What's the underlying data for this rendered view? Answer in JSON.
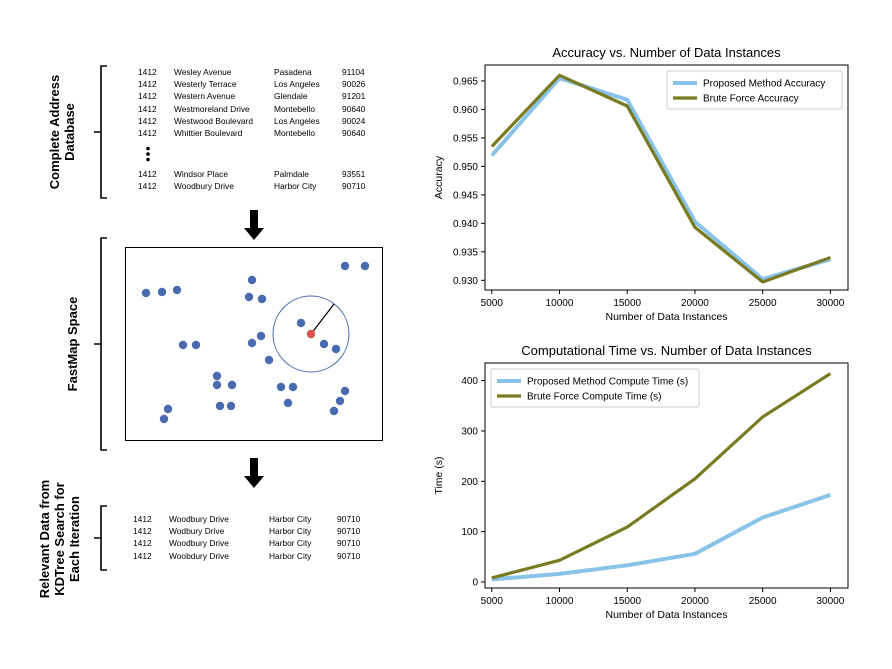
{
  "left": {
    "database_label": [
      "Complete Address",
      "Database"
    ],
    "fastmap_label": "FastMap Space",
    "relevant_label": [
      "Relevant Data from",
      "KDTree Search for",
      "Each Iteration"
    ],
    "database_rows": [
      [
        "1412",
        "Wesley Avenue",
        "Pasadena",
        "91104"
      ],
      [
        "1412",
        "Westerly Terrace",
        "Los Angeles",
        "90026"
      ],
      [
        "1412",
        "Western Avenue",
        "Glendale",
        "91201"
      ],
      [
        "1412",
        "Westmoreland Drive",
        "Montebello",
        "90640"
      ],
      [
        "1412",
        "Westwood Boulevard",
        "Los Angeles",
        "90024"
      ],
      [
        "1412",
        "Whittier Boulevard",
        "Montebello",
        "90640"
      ]
    ],
    "database_rows_tail": [
      [
        "1412",
        "Windsor Place",
        "Palmdale",
        "93551"
      ],
      [
        "1412",
        "Woodbury Drive",
        "Harbor City",
        "90710"
      ]
    ],
    "relevant_rows": [
      [
        "1412",
        "Woodbury Drive",
        "Harbor City",
        "90710"
      ],
      [
        "1412",
        "Wodbury Drive",
        "Harbor City",
        "90710"
      ],
      [
        "1412",
        "Woodbury Drive",
        "Harbor City",
        "90710"
      ],
      [
        "1412",
        "Woobdury Drive",
        "Harbor City",
        "90710"
      ]
    ],
    "dot_color": "#4a6baf",
    "query_color": "#d9534f"
  },
  "chart_data": [
    {
      "type": "line",
      "title": "Accuracy vs. Number of Data Instances",
      "xlabel": "Number of Data Instances",
      "ylabel": "Accuracy",
      "x": [
        5000,
        10000,
        15000,
        20000,
        25000,
        30000
      ],
      "xlim": [
        4500,
        31300
      ],
      "ylim": [
        0.9283,
        0.9678
      ],
      "yticks": [
        0.93,
        0.935,
        0.94,
        0.945,
        0.95,
        0.955,
        0.96,
        0.965
      ],
      "ytick_labels": [
        "0.930",
        "0.935",
        "0.940",
        "0.945",
        "0.950",
        "0.955",
        "0.960",
        "0.965"
      ],
      "xticks": [
        5000,
        10000,
        15000,
        20000,
        25000,
        30000
      ],
      "legend": "top-right",
      "series": [
        {
          "name": "Proposed Method Accuracy",
          "color": "#89c4e8",
          "values": [
            0.9519,
            0.9655,
            0.9617,
            0.9403,
            0.9302,
            0.9337
          ]
        },
        {
          "name": "Brute Force Accuracy",
          "color": "#7a7a22",
          "values": [
            0.9535,
            0.966,
            0.9606,
            0.9393,
            0.9297,
            0.934
          ]
        }
      ]
    },
    {
      "type": "line",
      "title": "Computational Time vs. Number of Data Instances",
      "xlabel": "Number of Data Instances",
      "ylabel": "Time (s)",
      "x": [
        5000,
        10000,
        15000,
        20000,
        25000,
        30000
      ],
      "xlim": [
        4500,
        31300
      ],
      "ylim": [
        -12,
        435
      ],
      "yticks": [
        0,
        100,
        200,
        300,
        400
      ],
      "ytick_labels": [
        "0",
        "100",
        "200",
        "300",
        "400"
      ],
      "xticks": [
        5000,
        10000,
        15000,
        20000,
        25000,
        30000
      ],
      "legend": "top-left",
      "series": [
        {
          "name": "Proposed Method Compute Time (s)",
          "color": "#89c4e8",
          "values": [
            5,
            16,
            33,
            56,
            128,
            173
          ]
        },
        {
          "name": "Brute Force Compute Time (s)",
          "color": "#7a7a22",
          "values": [
            8,
            43,
            109,
            205,
            328,
            414
          ]
        }
      ]
    }
  ]
}
